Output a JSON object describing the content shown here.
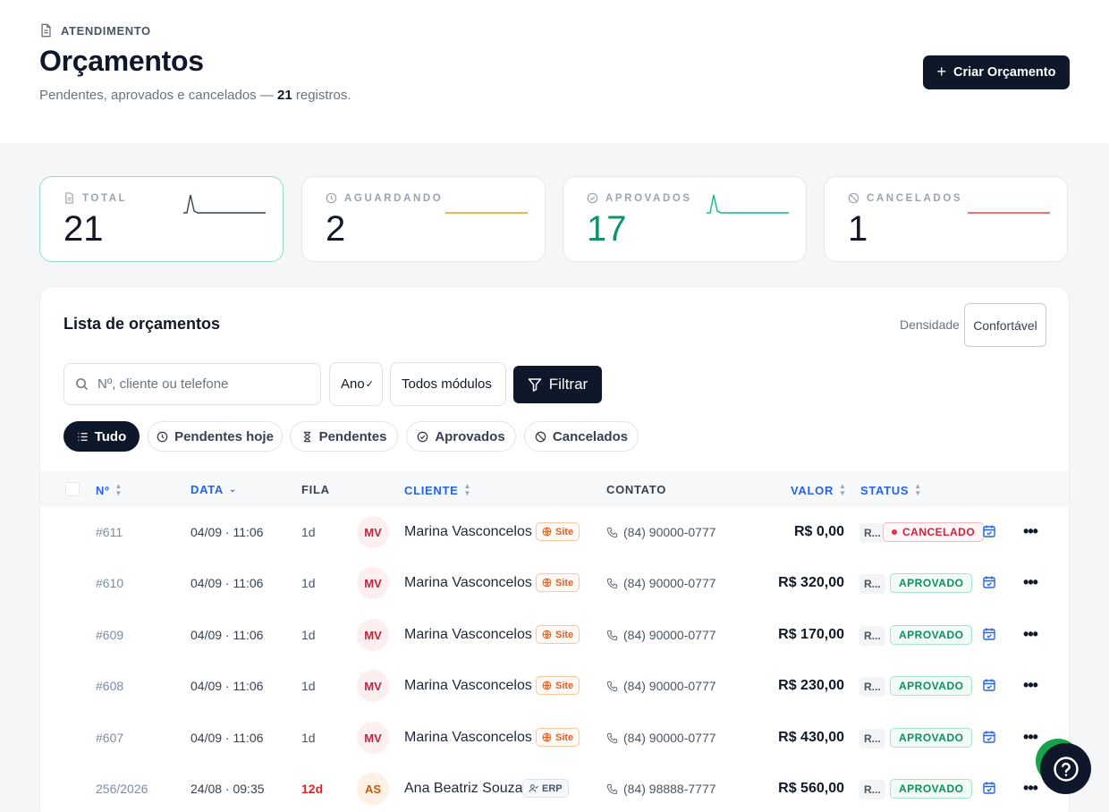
{
  "header": {
    "breadcrumb": "ATENDIMENTO",
    "title": "Orçamentos",
    "subtitle_pre": "Pendentes, aprovados e cancelados — ",
    "subtitle_count": "21",
    "subtitle_post": " registros.",
    "create_button": "Criar Orçamento"
  },
  "stats": [
    {
      "label": "TOTAL",
      "value": "21",
      "icon": "document-icon",
      "spark_color": "#334155",
      "value_color": "#111827"
    },
    {
      "label": "AGUARDANDO",
      "value": "2",
      "icon": "clock-icon",
      "spark_color": "#f59e0b",
      "value_color": "#111827"
    },
    {
      "label": "APROVADOS",
      "value": "17",
      "icon": "check-circle-icon",
      "spark_color": "#10b981",
      "value_color": "#10936b"
    },
    {
      "label": "CANCELADOS",
      "value": "1",
      "icon": "ban-icon",
      "spark_color": "#ef4444",
      "value_color": "#111827"
    }
  ],
  "panel": {
    "title": "Lista de orçamentos",
    "density_label": "Densidade",
    "density_value": "Confortável",
    "search_placeholder": "Nº, cliente ou telefone",
    "year_select": "Ano",
    "modules_select": "Todos módulos",
    "filter_button": "Filtrar"
  },
  "chips": [
    "Tudo",
    "Pendentes hoje",
    "Pendentes",
    "Aprovados",
    "Cancelados"
  ],
  "columns": {
    "num": "Nº",
    "date": "DATA",
    "queue": "FILA",
    "client": "CLIENTE",
    "contact": "CONTATO",
    "value": "VALOR",
    "status": "STATUS"
  },
  "rows": [
    {
      "num": "#611",
      "date": "04/09 · 11:06",
      "queue": "1d",
      "initials": "MV",
      "client": "Marina Vasconcelos",
      "source": "Site",
      "phone": "(84) 90000-0777",
      "amount": "R$ 0,00",
      "tag": "R...",
      "status": "CANCELADO"
    },
    {
      "num": "#610",
      "date": "04/09 · 11:06",
      "queue": "1d",
      "initials": "MV",
      "client": "Marina Vasconcelos",
      "source": "Site",
      "phone": "(84) 90000-0777",
      "amount": "R$ 320,00",
      "tag": "R...",
      "status": "APROVADO"
    },
    {
      "num": "#609",
      "date": "04/09 · 11:06",
      "queue": "1d",
      "initials": "MV",
      "client": "Marina Vasconcelos",
      "source": "Site",
      "phone": "(84) 90000-0777",
      "amount": "R$ 170,00",
      "tag": "R...",
      "status": "APROVADO"
    },
    {
      "num": "#608",
      "date": "04/09 · 11:06",
      "queue": "1d",
      "initials": "MV",
      "client": "Marina Vasconcelos",
      "source": "Site",
      "phone": "(84) 90000-0777",
      "amount": "R$ 230,00",
      "tag": "R...",
      "status": "APROVADO"
    },
    {
      "num": "#607",
      "date": "04/09 · 11:06",
      "queue": "1d",
      "initials": "MV",
      "client": "Marina Vasconcelos",
      "source": "Site",
      "phone": "(84) 90000-0777",
      "amount": "R$ 430,00",
      "tag": "R...",
      "status": "APROVADO"
    },
    {
      "num": "256/2026",
      "date": "24/08 · 09:35",
      "queue": "12d",
      "initials": "AS",
      "client": "Ana Beatriz Souza",
      "source": "ERP",
      "phone": "(84) 98888-7777",
      "amount": "R$ 560,00",
      "tag": "R...",
      "status": "APROVADO"
    }
  ]
}
